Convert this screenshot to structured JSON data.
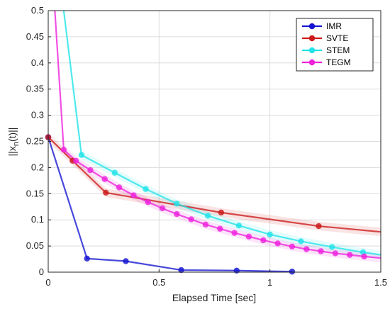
{
  "chart_data": {
    "type": "line",
    "xlabel": "Elapsed Time [sec]",
    "ylabel": "||x_n(t)||",
    "ylabel_main": "||x",
    "ylabel_sub": "n",
    "ylabel_tail": "(t)||",
    "xlim": [
      0,
      1.5
    ],
    "ylim": [
      0,
      0.5
    ],
    "x_ticks": [
      0,
      0.5,
      1,
      1.5
    ],
    "x_tick_labels": [
      "0",
      "0.5",
      "1",
      "1.5"
    ],
    "y_ticks": [
      0,
      0.05,
      0.1,
      0.15,
      0.2,
      0.25,
      0.3,
      0.35,
      0.4,
      0.45,
      0.5
    ],
    "y_tick_labels": [
      "0",
      "0.05",
      "0.1",
      "0.15",
      "0.2",
      "0.25",
      "0.3",
      "0.35",
      "0.4",
      "0.45",
      "0.5"
    ],
    "grid": true,
    "legend_position": "top-right",
    "series": [
      {
        "name": "IMR",
        "color": "#1414d2",
        "x": [
          0,
          0.175,
          0.35,
          0.6,
          0.85,
          1.1
        ],
        "y": [
          0.258,
          0.026,
          0.021,
          0.004,
          0.003,
          0.001
        ],
        "marker_indices": [
          0,
          1,
          2,
          3,
          4,
          5
        ],
        "shaded": false
      },
      {
        "name": "SVTE",
        "color": "#cc1a1a",
        "x": [
          0,
          0.11,
          0.26,
          0.78,
          1.22,
          1.5
        ],
        "y": [
          0.258,
          0.213,
          0.152,
          0.114,
          0.088,
          0.077
        ],
        "marker_indices": [
          0,
          1,
          2,
          3,
          4
        ],
        "shaded": true
      },
      {
        "name": "STEM",
        "color": "#22e3e8",
        "x": [
          0.07,
          0.15,
          0.3,
          0.44,
          0.58,
          0.72,
          0.86,
          1.0,
          1.14,
          1.28,
          1.42,
          1.5
        ],
        "y": [
          0.5,
          0.224,
          0.19,
          0.159,
          0.131,
          0.108,
          0.089,
          0.072,
          0.059,
          0.048,
          0.038,
          0.033
        ],
        "marker_indices": [
          1,
          2,
          3,
          4,
          5,
          6,
          7,
          8,
          9,
          10
        ],
        "shaded": true
      },
      {
        "name": "TEGM",
        "color": "#ee22dd",
        "x": [
          0.03,
          0.07,
          0.125,
          0.19,
          0.255,
          0.32,
          0.385,
          0.45,
          0.515,
          0.58,
          0.645,
          0.71,
          0.775,
          0.84,
          0.905,
          0.97,
          1.035,
          1.1,
          1.165,
          1.23,
          1.295,
          1.36,
          1.425,
          1.5
        ],
        "y": [
          0.5,
          0.234,
          0.213,
          0.195,
          0.178,
          0.162,
          0.147,
          0.134,
          0.122,
          0.111,
          0.101,
          0.091,
          0.083,
          0.075,
          0.068,
          0.061,
          0.055,
          0.049,
          0.044,
          0.04,
          0.036,
          0.033,
          0.03,
          0.027
        ],
        "marker_indices": [
          1,
          2,
          3,
          4,
          5,
          6,
          7,
          8,
          9,
          10,
          11,
          12,
          13,
          14,
          15,
          16,
          17,
          18,
          19,
          20,
          21,
          22
        ],
        "shaded": true
      }
    ]
  }
}
